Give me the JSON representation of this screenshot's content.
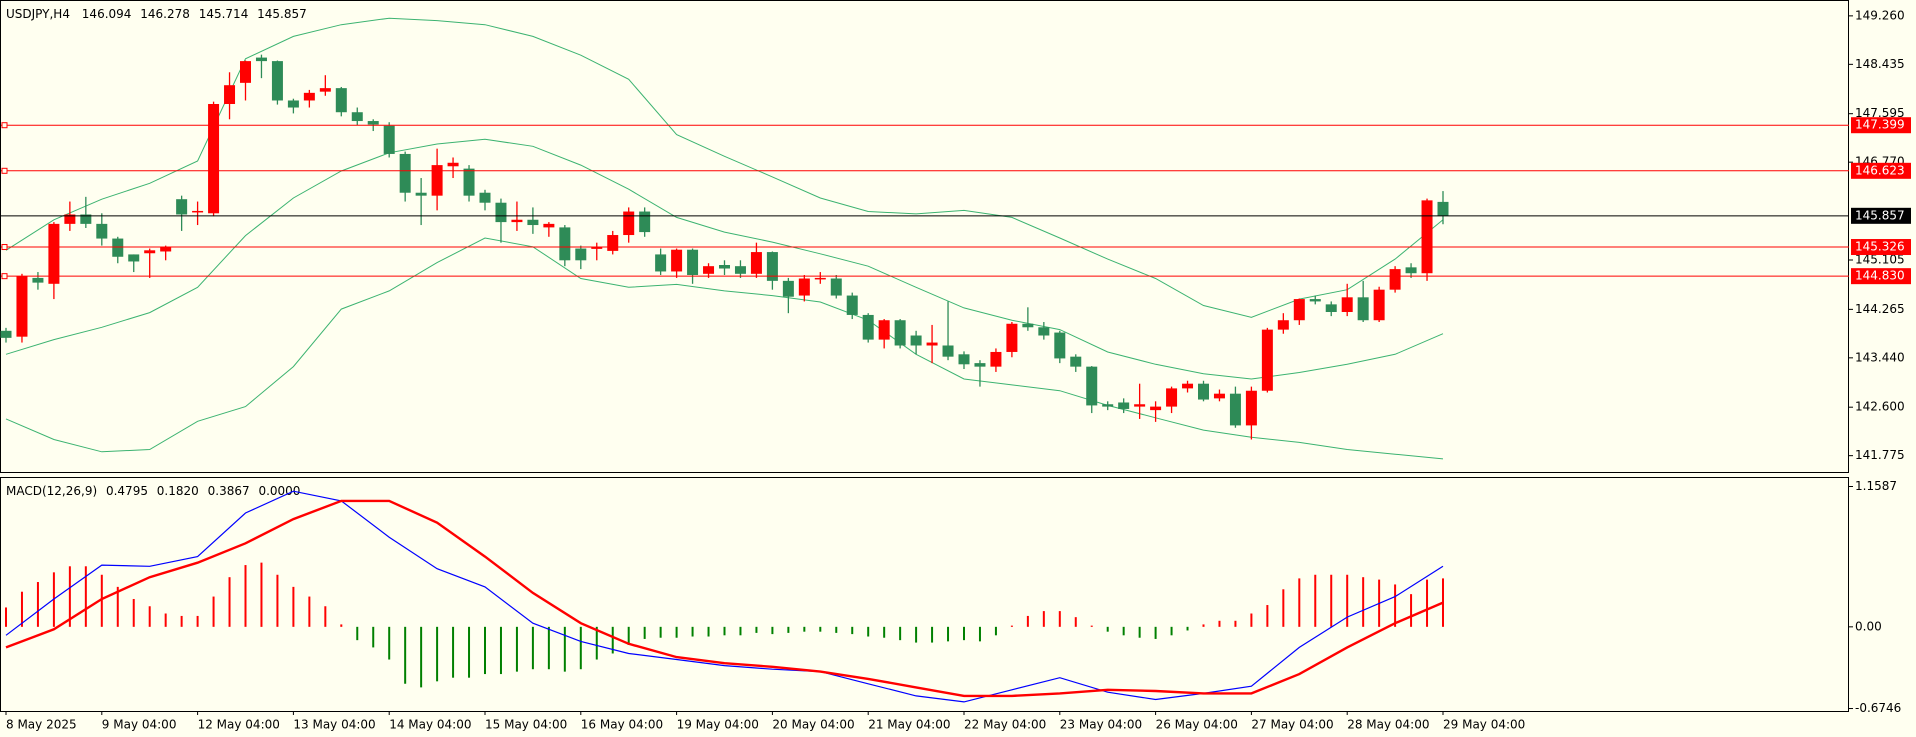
{
  "chart_data": [
    {
      "type": "candlestick",
      "title": "USDJPY,H4",
      "open": [
        143.9,
        143.8,
        144.8,
        144.7,
        145.72,
        145.88,
        145.72,
        145.47,
        145.2,
        145.22,
        145.25,
        146.14,
        145.92,
        145.9,
        147.76,
        148.12,
        148.55,
        148.49,
        147.82,
        147.82,
        147.97,
        148.03,
        147.62,
        147.47,
        147.39,
        146.91,
        146.25,
        146.2,
        146.7,
        146.66,
        146.25,
        146.08,
        145.75,
        145.79,
        145.66,
        145.66,
        145.3,
        145.3,
        145.26,
        145.53,
        145.93,
        145.2,
        144.91,
        145.28,
        144.87,
        145.02,
        145.0,
        144.87,
        145.24,
        144.75,
        144.5,
        144.79,
        144.79,
        144.5,
        144.17,
        143.75,
        144.08,
        143.82,
        143.65,
        143.65,
        143.5,
        143.35,
        143.29,
        143.54,
        144.02,
        143.96,
        143.87,
        143.46,
        143.29,
        142.65,
        142.68,
        142.61,
        142.55,
        142.61,
        142.92,
        143.0,
        142.75,
        142.83,
        142.29,
        142.88,
        143.92,
        144.08,
        144.44,
        144.35,
        144.22,
        144.47,
        144.08,
        144.6,
        144.98,
        144.88,
        146.094
      ],
      "high": [
        143.95,
        144.87,
        144.9,
        145.75,
        146.1,
        146.18,
        145.9,
        145.5,
        145.2,
        145.3,
        145.35,
        146.2,
        146.1,
        147.8,
        148.3,
        148.5,
        148.6,
        148.5,
        147.85,
        148.0,
        148.25,
        148.05,
        147.7,
        147.5,
        147.45,
        146.95,
        146.5,
        147.0,
        146.85,
        146.72,
        146.3,
        146.15,
        146.1,
        146.0,
        145.75,
        145.7,
        145.35,
        145.4,
        145.6,
        146.0,
        146.0,
        145.3,
        145.3,
        145.3,
        145.05,
        145.1,
        145.1,
        145.4,
        145.25,
        144.8,
        144.85,
        144.9,
        144.85,
        144.55,
        144.2,
        144.1,
        144.1,
        143.9,
        144.0,
        144.4,
        143.55,
        143.4,
        143.6,
        144.05,
        144.3,
        144.05,
        143.9,
        143.5,
        143.3,
        142.7,
        142.75,
        143.0,
        142.7,
        142.95,
        143.05,
        143.05,
        142.9,
        142.95,
        142.95,
        143.95,
        144.2,
        144.45,
        144.5,
        144.4,
        144.7,
        144.75,
        144.65,
        145.0,
        145.05,
        146.15,
        146.278
      ],
      "low": [
        143.7,
        143.7,
        144.6,
        144.44,
        145.6,
        145.65,
        145.35,
        145.05,
        144.9,
        144.8,
        145.1,
        145.6,
        145.7,
        145.85,
        147.5,
        147.82,
        148.2,
        147.75,
        147.6,
        147.7,
        147.9,
        147.55,
        147.4,
        147.3,
        146.85,
        146.1,
        145.7,
        145.95,
        146.5,
        146.1,
        145.95,
        145.4,
        145.6,
        145.55,
        145.5,
        145.0,
        144.95,
        145.1,
        145.2,
        145.4,
        145.5,
        144.85,
        144.8,
        144.7,
        144.8,
        144.85,
        144.8,
        144.8,
        144.6,
        144.2,
        144.4,
        144.7,
        144.45,
        144.1,
        143.7,
        143.6,
        143.6,
        143.5,
        143.35,
        143.4,
        143.25,
        142.95,
        143.2,
        143.45,
        143.9,
        143.75,
        143.35,
        143.2,
        142.5,
        142.55,
        142.5,
        142.4,
        142.35,
        142.5,
        142.85,
        142.7,
        142.7,
        142.25,
        142.05,
        142.85,
        143.85,
        144.0,
        144.35,
        144.15,
        144.15,
        144.05,
        144.05,
        144.55,
        144.8,
        144.75,
        145.714
      ],
      "close": [
        143.78,
        144.83,
        144.72,
        145.72,
        145.88,
        145.72,
        145.47,
        145.16,
        145.08,
        145.27,
        145.32,
        145.88,
        145.94,
        147.76,
        148.08,
        148.49,
        148.49,
        147.82,
        147.7,
        147.95,
        148.03,
        147.62,
        147.47,
        147.41,
        146.91,
        146.25,
        146.2,
        146.72,
        146.76,
        146.2,
        146.08,
        145.75,
        145.79,
        145.7,
        145.72,
        145.1,
        145.1,
        145.32,
        145.53,
        145.93,
        145.58,
        144.91,
        145.28,
        144.85,
        145.0,
        144.96,
        144.87,
        145.24,
        144.75,
        144.48,
        144.79,
        144.8,
        144.5,
        144.17,
        143.75,
        144.08,
        143.65,
        143.65,
        143.7,
        143.46,
        143.33,
        143.29,
        143.54,
        144.02,
        143.96,
        143.82,
        143.43,
        143.29,
        142.63,
        142.61,
        142.57,
        142.65,
        142.61,
        142.92,
        143.0,
        142.73,
        142.83,
        142.29,
        142.88,
        143.92,
        144.08,
        144.44,
        144.4,
        144.22,
        144.47,
        144.08,
        144.6,
        144.95,
        144.88,
        146.12,
        145.857
      ],
      "up_color": "#ff0000",
      "down_color": "#2e8b57",
      "bands": [
        {
          "color": "#3cb371",
          "values": [
            145.27,
            145.79,
            146.14,
            146.41,
            146.79,
            148.53,
            148.91,
            149.11,
            149.22,
            149.18,
            149.11,
            148.91,
            148.59,
            148.18,
            147.24,
            146.87,
            146.52,
            146.16,
            145.93,
            145.89,
            145.95,
            145.83,
            145.48,
            145.12,
            144.79,
            144.33,
            144.13,
            144.44,
            144.6,
            145.12,
            145.79
          ]
        },
        {
          "color": "#3cb371",
          "values": [
            143.5,
            143.75,
            143.96,
            144.21,
            144.64,
            145.52,
            146.16,
            146.62,
            146.93,
            147.08,
            147.16,
            147.04,
            146.72,
            146.31,
            145.83,
            145.58,
            145.41,
            145.21,
            145.0,
            144.64,
            144.29,
            144.08,
            143.92,
            143.54,
            143.33,
            143.17,
            143.08,
            143.19,
            143.33,
            143.5,
            143.85
          ]
        },
        {
          "color": "#3cb371",
          "values": [
            142.4,
            142.05,
            141.84,
            141.88,
            142.36,
            142.61,
            143.29,
            144.27,
            144.58,
            145.06,
            145.48,
            145.33,
            144.79,
            144.64,
            144.69,
            144.58,
            144.5,
            144.39,
            144.08,
            143.5,
            143.08,
            142.98,
            142.88,
            142.63,
            142.42,
            142.21,
            142.09,
            142.0,
            141.88,
            141.8,
            141.72
          ]
        }
      ],
      "levels": [
        {
          "value": 147.399,
          "color": "#ff0000"
        },
        {
          "value": 146.623,
          "color": "#ff0000"
        },
        {
          "value": 145.326,
          "color": "#ff0000"
        },
        {
          "value": 144.83,
          "label": "144.830",
          "color": "#ff0000"
        }
      ],
      "ylim": [
        141.48,
        149.53
      ],
      "yticks": [
        {
          "value": 149.26,
          "label": "149.260"
        },
        148.435,
        147.595,
        {
          "value": 146.77,
          "label": "146.770"
        },
        145.105,
        144.265,
        {
          "value": 143.44,
          "label": "143.440"
        },
        {
          "value": 142.6,
          "label": "142.600"
        },
        141.775
      ]
    },
    {
      "type": "macd",
      "title": "MACD(12,26,9)",
      "readout": [
        0.4795,
        {
          "value": 0.182,
          "label": "0.1820"
        },
        0.3867,
        {
          "value": 0,
          "label": "0.0000"
        }
      ],
      "histogram": [
        0.16,
        0.29,
        0.37,
        0.45,
        0.5,
        0.5,
        0.43,
        0.33,
        0.23,
        0.17,
        0.11,
        0.09,
        0.09,
        0.25,
        0.41,
        0.51,
        0.53,
        0.43,
        0.33,
        0.25,
        0.17,
        0.02,
        -0.11,
        -0.17,
        -0.27,
        -0.47,
        -0.5,
        -0.45,
        -0.42,
        -0.42,
        -0.39,
        -0.39,
        -0.37,
        -0.35,
        -0.35,
        -0.37,
        -0.35,
        -0.27,
        -0.22,
        -0.15,
        -0.1,
        -0.09,
        -0.09,
        -0.08,
        -0.08,
        -0.07,
        -0.07,
        -0.05,
        -0.06,
        -0.05,
        -0.04,
        -0.04,
        -0.05,
        -0.06,
        -0.08,
        -0.09,
        -0.11,
        -0.13,
        -0.13,
        -0.12,
        -0.11,
        -0.12,
        -0.07,
        0.01,
        0.09,
        0.13,
        0.13,
        0.08,
        0.01,
        -0.04,
        -0.07,
        -0.09,
        -0.1,
        -0.07,
        -0.03,
        0.02,
        0.05,
        0.05,
        0.11,
        0.18,
        0.31,
        0.4,
        0.43,
        0.43,
        0.43,
        0.41,
        0.39,
        0.35,
        0.27,
        0.39,
        0.4
      ],
      "up_color": "#ff0000",
      "down_color": "#008000",
      "series": [
        {
          "color": "#0000ff",
          "values": [
            -0.07,
            0.23,
            0.51,
            0.5,
            0.58,
            0.94,
            1.12,
            1.04,
            0.74,
            0.48,
            0.33,
            0.03,
            -0.12,
            -0.22,
            -0.27,
            -0.32,
            -0.35,
            -0.37,
            -0.47,
            -0.57,
            -0.62,
            -0.52,
            -0.42,
            -0.54,
            -0.6,
            -0.55,
            -0.49,
            -0.17,
            0.08,
            0.25,
            0.5
          ]
        },
        {
          "color": "#ff0000",
          "values": [
            -0.17,
            -0.02,
            0.23,
            0.41,
            0.53,
            0.69,
            0.89,
            1.04,
            1.04,
            0.86,
            0.58,
            0.28,
            0.03,
            -0.14,
            -0.25,
            -0.3,
            -0.33,
            -0.37,
            -0.43,
            -0.5,
            -0.57,
            -0.57,
            -0.55,
            -0.52,
            -0.53,
            -0.55,
            -0.55,
            -0.39,
            -0.17,
            0.03,
            0.2
          ]
        }
      ],
      "ylim": [
        -0.695,
        1.229
      ],
      "yticks": [
        1.1587,
        {
          "value": 0,
          "label": "0.00"
        },
        -0.6746
      ],
      "xtick_labels": [
        "8 May 2025",
        "9 May 04:00",
        "12 May 04:00",
        "13 May 04:00",
        "14 May 04:00",
        "15 May 04:00",
        "16 May 04:00",
        "19 May 04:00",
        "20 May 04:00",
        "21 May 04:00",
        "22 May 04:00",
        "23 May 04:00",
        "26 May 04:00",
        "27 May 04:00",
        "28 May 04:00",
        "29 May 04:00"
      ]
    }
  ]
}
